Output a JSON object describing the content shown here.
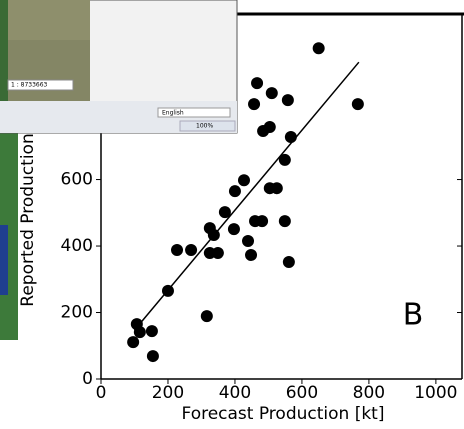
{
  "chart_data": {
    "type": "scatter",
    "xlabel": "Forecast Production [kt]",
    "ylabel": "Reported Production",
    "annotation": "B",
    "x": [
      650,
      466,
      510,
      457,
      558,
      767,
      504,
      484,
      567,
      549,
      427,
      400,
      504,
      525,
      370,
      460,
      481,
      549,
      325,
      397,
      337,
      227,
      269,
      439,
      448,
      325,
      349,
      561,
      200,
      316,
      107,
      116,
      152,
      96,
      155
    ],
    "values": [
      995,
      890,
      860,
      827,
      839,
      827,
      758,
      746,
      728,
      659,
      598,
      565,
      574,
      574,
      502,
      475,
      475,
      475,
      454,
      451,
      433,
      388,
      388,
      415,
      373,
      379,
      379,
      352,
      265,
      189,
      165,
      141,
      144,
      111,
      69
    ],
    "color": "#000000",
    "trend_line": {
      "x": [
        100,
        770
      ],
      "y": [
        147,
        953
      ]
    },
    "xlim": [
      0,
      1078
    ],
    "ylim": [
      0,
      1095
    ],
    "xticks": [
      0,
      200,
      400,
      600,
      800,
      1000
    ],
    "yticks": [
      0,
      200,
      400,
      600
    ]
  },
  "overlay": {
    "scale": "1 : 8733663",
    "language": "English",
    "zoom": "100%"
  }
}
